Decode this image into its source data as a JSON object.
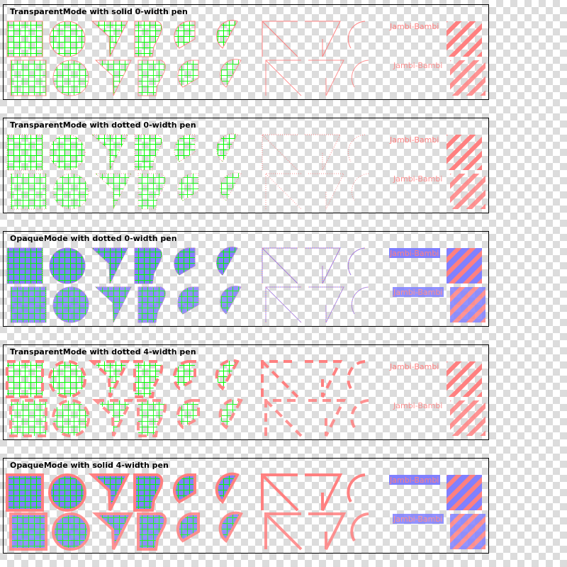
{
  "panels": [
    {
      "title": "TransparentMode with solid 0-width pen",
      "mode": "transparent",
      "pen": "solid",
      "width": 0
    },
    {
      "title": "TransparentMode with dotted 0-width pen",
      "mode": "transparent",
      "pen": "dotted",
      "width": 0
    },
    {
      "title": "OpaqueMode with dotted 0-width pen",
      "mode": "opaque",
      "pen": "dotted",
      "width": 0
    },
    {
      "title": "TransparentMode with dotted 4-width pen",
      "mode": "transparent",
      "pen": "dotted",
      "width": 4
    },
    {
      "title": "OpaqueMode with solid 4-width pen",
      "mode": "opaque",
      "pen": "solid",
      "width": 4
    }
  ],
  "sample_text": "Jambi-Bambi",
  "colors": {
    "pen": "#ff8080",
    "brush": "#00ff00",
    "background": "#8080ff",
    "checker": "#dcdcdc"
  }
}
